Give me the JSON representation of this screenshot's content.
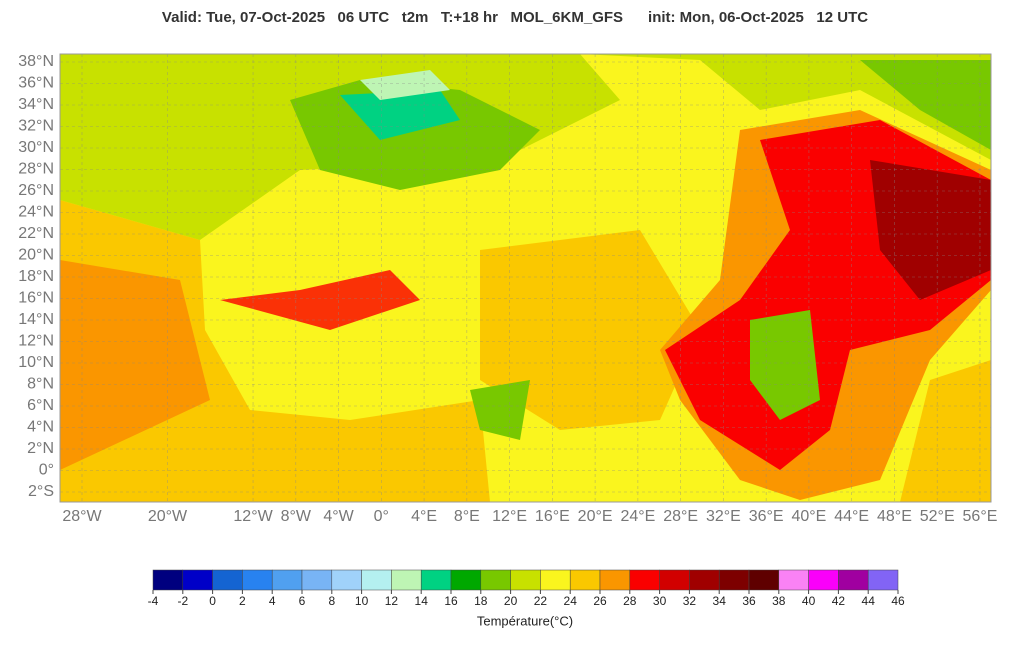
{
  "title": "Valid: Tue, 07-Oct-2025   06 UTC   t2m   T:+18 hr   MOL_6KM_GFS      init: Mon, 06-Oct-2025   12 UTC",
  "map": {
    "lat_labels": [
      {
        "value": 38,
        "label": "38°N"
      },
      {
        "value": 36,
        "label": "36°N"
      },
      {
        "value": 34,
        "label": "34°N"
      },
      {
        "value": 32,
        "label": "32°N"
      },
      {
        "value": 30,
        "label": "30°N"
      },
      {
        "value": 28,
        "label": "28°N"
      },
      {
        "value": 26,
        "label": "26°N"
      },
      {
        "value": 24,
        "label": "24°N"
      },
      {
        "value": 22,
        "label": "22°N"
      },
      {
        "value": 20,
        "label": "20°N"
      },
      {
        "value": 18,
        "label": "18°N"
      },
      {
        "value": 16,
        "label": "16°N"
      },
      {
        "value": 14,
        "label": "14°N"
      },
      {
        "value": 12,
        "label": "12°N"
      },
      {
        "value": 10,
        "label": "10°N"
      },
      {
        "value": 8,
        "label": "8°N"
      },
      {
        "value": 6,
        "label": "6°N"
      },
      {
        "value": 4,
        "label": "4°N"
      },
      {
        "value": 2,
        "label": "2°N"
      },
      {
        "value": 0,
        "label": "0°"
      },
      {
        "value": -2,
        "label": "2°S"
      }
    ],
    "lon_labels": [
      {
        "value": -28,
        "label": "28°W"
      },
      {
        "value": -20,
        "label": "20°W"
      },
      {
        "value": -12,
        "label": "12°W"
      },
      {
        "value": -8,
        "label": "8°W"
      },
      {
        "value": -4,
        "label": "4°W"
      },
      {
        "value": 0,
        "label": "0°"
      },
      {
        "value": 4,
        "label": "4°E"
      },
      {
        "value": 8,
        "label": "8°E"
      },
      {
        "value": 12,
        "label": "12°E"
      },
      {
        "value": 16,
        "label": "16°E"
      },
      {
        "value": 20,
        "label": "20°E"
      },
      {
        "value": 24,
        "label": "24°E"
      },
      {
        "value": 28,
        "label": "28°E"
      },
      {
        "value": 32,
        "label": "32°E"
      },
      {
        "value": 36,
        "label": "36°E"
      },
      {
        "value": 40,
        "label": "40°E"
      },
      {
        "value": 44,
        "label": "44°E"
      },
      {
        "value": 48,
        "label": "48°E"
      },
      {
        "value": 52,
        "label": "52°E"
      },
      {
        "value": 56,
        "label": "56°E"
      }
    ]
  },
  "colorbar": {
    "label": "Température(°C)",
    "ticks": [
      -4,
      -2,
      0,
      2,
      4,
      6,
      8,
      10,
      12,
      14,
      16,
      18,
      20,
      22,
      24,
      26,
      28,
      30,
      32,
      34,
      36,
      38,
      40,
      42,
      44,
      46
    ],
    "colors": [
      "#00007f",
      "#0000c8",
      "#1464d2",
      "#2882f0",
      "#50a0f0",
      "#78b4f5",
      "#a0d2fa",
      "#b4f0f0",
      "#bef5b4",
      "#00d282",
      "#00a800",
      "#78c800",
      "#c8e100",
      "#faf51e",
      "#fac800",
      "#fa9600",
      "#fa0000",
      "#d20000",
      "#a00000",
      "#7d0000",
      "#5f0000",
      "#fa82f5",
      "#fa00fa",
      "#a000a0",
      "#8264f5"
    ]
  }
}
